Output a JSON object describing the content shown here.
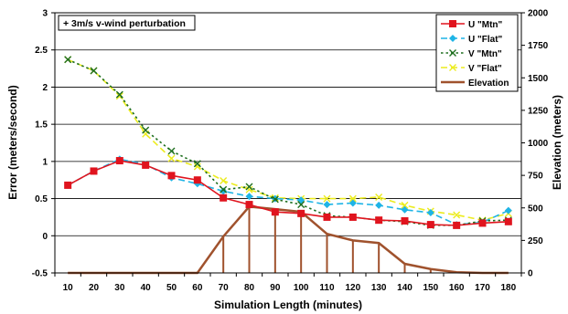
{
  "chart_data": {
    "type": "line",
    "annotation": "+ 3m/s v-wind perturbation",
    "xlabel": "Simulation Length (minutes)",
    "ylabel": "Error (meters/second)",
    "y2label": "Elevation (meters)",
    "categories": [
      10,
      20,
      30,
      40,
      50,
      60,
      70,
      80,
      90,
      100,
      110,
      120,
      130,
      140,
      150,
      160,
      170,
      180
    ],
    "ylim": [
      -0.5,
      3
    ],
    "y2lim": [
      0,
      2000
    ],
    "yticks": [
      "-0.5",
      "0",
      "0.5",
      "1",
      "1.5",
      "2",
      "2.5",
      "3"
    ],
    "y2ticks": [
      "0",
      "250",
      "500",
      "750",
      "1000",
      "1250",
      "1500",
      "1750",
      "2000"
    ],
    "legend_position": "top-right",
    "series": [
      {
        "name": "U \"Mtn\"",
        "axis": "left",
        "color": "#e0141e",
        "dash": "solid",
        "marker": "square",
        "values": [
          0.68,
          0.87,
          1.01,
          0.95,
          0.81,
          0.75,
          0.51,
          0.42,
          0.32,
          0.3,
          0.25,
          0.25,
          0.21,
          0.2,
          0.15,
          0.14,
          0.17,
          0.19
        ]
      },
      {
        "name": "U \"Flat\"",
        "axis": "left",
        "color": "#1eb4e6",
        "dash": "dash",
        "marker": "diamond",
        "values": [
          0.68,
          0.87,
          1.03,
          0.96,
          0.78,
          0.7,
          0.6,
          0.53,
          0.5,
          0.48,
          0.42,
          0.44,
          0.41,
          0.35,
          0.31,
          0.15,
          0.18,
          0.34
        ]
      },
      {
        "name": "V \"Mtn\"",
        "axis": "left",
        "color": "#1e6e1e",
        "dash": "dot",
        "marker": "x",
        "values": [
          2.37,
          2.22,
          1.9,
          1.42,
          1.14,
          0.97,
          0.62,
          0.66,
          0.49,
          0.42,
          0.27,
          0.25,
          0.21,
          0.19,
          0.14,
          0.14,
          0.2,
          0.21
        ]
      },
      {
        "name": "V \"Flat\"",
        "axis": "left",
        "color": "#ecec1e",
        "dash": "dash",
        "marker": "x",
        "values": [
          2.37,
          2.22,
          1.88,
          1.37,
          1.04,
          0.93,
          0.74,
          0.62,
          0.51,
          0.5,
          0.5,
          0.5,
          0.52,
          0.41,
          0.33,
          0.28,
          0.21,
          0.3
        ]
      },
      {
        "name": "Elevation",
        "axis": "right",
        "color": "#a0522d",
        "dash": "solid",
        "marker": "none",
        "values": [
          0,
          0,
          0,
          0,
          0,
          0,
          280,
          510,
          490,
          470,
          300,
          250,
          230,
          70,
          30,
          5,
          0,
          0
        ]
      }
    ]
  }
}
